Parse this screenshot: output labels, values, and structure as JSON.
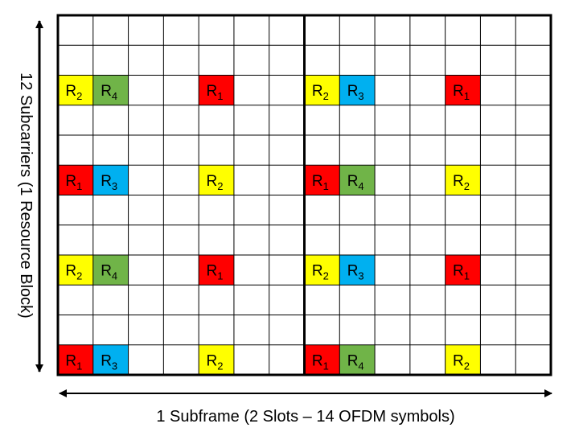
{
  "y_axis_label": "12 Subcarriers (1 Resource Block)",
  "x_axis_label": "1 Subframe (2 Slots – 14 OFDM symbols)",
  "colors": {
    "R1": "#ff0000",
    "R2": "#ffff00",
    "R3": "#00b0f0",
    "R4": "#70b448",
    "grid": "#000000",
    "background": "#ffffff"
  },
  "grid": {
    "symbols": 14,
    "subcarriers": 12,
    "slots": 2
  },
  "reference_signals": [
    {
      "row": 2,
      "col": 0,
      "letter": "R",
      "port": "2",
      "color_key": "R2"
    },
    {
      "row": 2,
      "col": 1,
      "letter": "R",
      "port": "4",
      "color_key": "R4"
    },
    {
      "row": 2,
      "col": 4,
      "letter": "R",
      "port": "1",
      "color_key": "R1"
    },
    {
      "row": 2,
      "col": 7,
      "letter": "R",
      "port": "2",
      "color_key": "R2"
    },
    {
      "row": 2,
      "col": 8,
      "letter": "R",
      "port": "3",
      "color_key": "R3"
    },
    {
      "row": 2,
      "col": 11,
      "letter": "R",
      "port": "1",
      "color_key": "R1"
    },
    {
      "row": 5,
      "col": 0,
      "letter": "R",
      "port": "1",
      "color_key": "R1"
    },
    {
      "row": 5,
      "col": 1,
      "letter": "R",
      "port": "3",
      "color_key": "R3"
    },
    {
      "row": 5,
      "col": 4,
      "letter": "R",
      "port": "2",
      "color_key": "R2"
    },
    {
      "row": 5,
      "col": 7,
      "letter": "R",
      "port": "1",
      "color_key": "R1"
    },
    {
      "row": 5,
      "col": 8,
      "letter": "R",
      "port": "4",
      "color_key": "R4"
    },
    {
      "row": 5,
      "col": 11,
      "letter": "R",
      "port": "2",
      "color_key": "R2"
    },
    {
      "row": 8,
      "col": 0,
      "letter": "R",
      "port": "2",
      "color_key": "R2"
    },
    {
      "row": 8,
      "col": 1,
      "letter": "R",
      "port": "4",
      "color_key": "R4"
    },
    {
      "row": 8,
      "col": 4,
      "letter": "R",
      "port": "1",
      "color_key": "R1"
    },
    {
      "row": 8,
      "col": 7,
      "letter": "R",
      "port": "2",
      "color_key": "R2"
    },
    {
      "row": 8,
      "col": 8,
      "letter": "R",
      "port": "3",
      "color_key": "R3"
    },
    {
      "row": 8,
      "col": 11,
      "letter": "R",
      "port": "1",
      "color_key": "R1"
    },
    {
      "row": 11,
      "col": 0,
      "letter": "R",
      "port": "1",
      "color_key": "R1"
    },
    {
      "row": 11,
      "col": 1,
      "letter": "R",
      "port": "3",
      "color_key": "R3"
    },
    {
      "row": 11,
      "col": 4,
      "letter": "R",
      "port": "2",
      "color_key": "R2"
    },
    {
      "row": 11,
      "col": 7,
      "letter": "R",
      "port": "1",
      "color_key": "R1"
    },
    {
      "row": 11,
      "col": 8,
      "letter": "R",
      "port": "4",
      "color_key": "R4"
    },
    {
      "row": 11,
      "col": 11,
      "letter": "R",
      "port": "2",
      "color_key": "R2"
    }
  ]
}
